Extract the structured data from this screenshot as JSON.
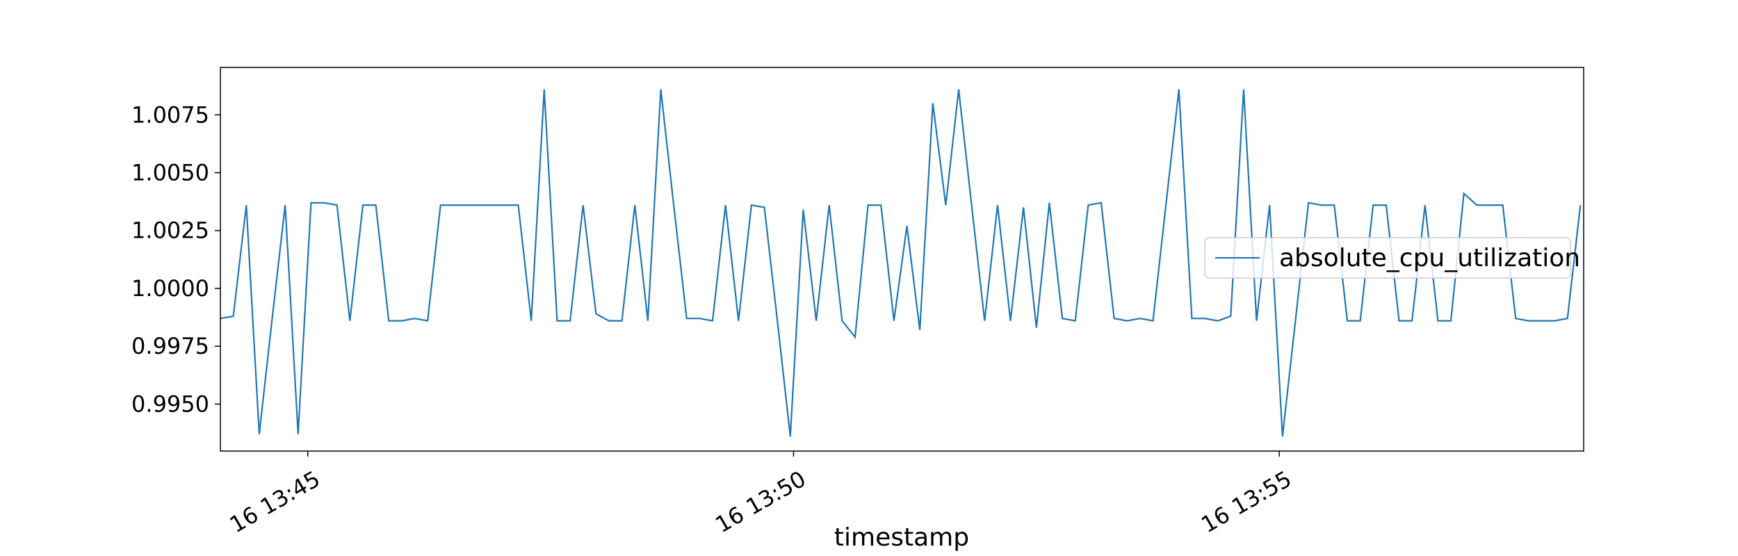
{
  "chart_data": {
    "type": "line",
    "title": "",
    "xlabel": "timestamp",
    "ylabel": "",
    "x_ticks": [
      {
        "minute": 45,
        "label": "16 13:45"
      },
      {
        "minute": 50,
        "label": "16 13:50"
      },
      {
        "minute": 55,
        "label": "16 13:55"
      }
    ],
    "y_ticks": [
      {
        "value": 0.995,
        "label": "0.9950"
      },
      {
        "value": 0.9975,
        "label": "0.9975"
      },
      {
        "value": 1.0,
        "label": "1.0000"
      },
      {
        "value": 1.0025,
        "label": "1.0025"
      },
      {
        "value": 1.005,
        "label": "1.0050"
      },
      {
        "value": 1.0075,
        "label": "1.0075"
      }
    ],
    "xlim": [
      "13:44:06",
      "13:58:08"
    ],
    "ylim": [
      0.99297,
      1.00955
    ],
    "grid": false,
    "legend_position": "center-right",
    "colors": {
      "series": "#1f77b4",
      "frame": "#000000"
    },
    "series": [
      {
        "name": "absolute_cpu_utilization",
        "x": [
          "13:44:06",
          "13:44:14",
          "13:44:22",
          "13:44:30",
          "13:44:38",
          "13:44:46",
          "13:44:54",
          "13:45:02",
          "13:45:10",
          "13:45:18",
          "13:45:26",
          "13:45:34",
          "13:45:42",
          "13:45:50",
          "13:45:58",
          "13:46:06",
          "13:46:14",
          "13:46:22",
          "13:46:30",
          "13:46:38",
          "13:46:46",
          "13:46:54",
          "13:47:02",
          "13:47:10",
          "13:47:18",
          "13:47:26",
          "13:47:34",
          "13:47:42",
          "13:47:50",
          "13:47:58",
          "13:48:06",
          "13:48:14",
          "13:48:22",
          "13:48:30",
          "13:48:38",
          "13:48:46",
          "13:48:54",
          "13:49:02",
          "13:49:10",
          "13:49:18",
          "13:49:26",
          "13:49:34",
          "13:49:42",
          "13:49:50",
          "13:49:58",
          "13:50:06",
          "13:50:14",
          "13:50:22",
          "13:50:30",
          "13:50:38",
          "13:50:46",
          "13:50:54",
          "13:51:02",
          "13:51:10",
          "13:51:18",
          "13:51:26",
          "13:51:34",
          "13:51:42",
          "13:51:50",
          "13:51:58",
          "13:52:06",
          "13:52:14",
          "13:52:22",
          "13:52:30",
          "13:52:38",
          "13:52:46",
          "13:52:54",
          "13:53:02",
          "13:53:10",
          "13:53:18",
          "13:53:26",
          "13:53:34",
          "13:53:42",
          "13:53:50",
          "13:53:58",
          "13:54:06",
          "13:54:14",
          "13:54:22",
          "13:54:30",
          "13:54:38",
          "13:54:46",
          "13:54:54",
          "13:55:02",
          "13:55:10",
          "13:55:18",
          "13:55:26",
          "13:55:34",
          "13:55:42",
          "13:55:50",
          "13:55:58",
          "13:56:06",
          "13:56:14",
          "13:56:22",
          "13:56:30",
          "13:56:38",
          "13:56:46",
          "13:56:54",
          "13:57:02",
          "13:57:10",
          "13:57:18",
          "13:57:26",
          "13:57:34",
          "13:57:42",
          "13:57:50",
          "13:57:58",
          "13:58:06"
        ],
        "values": [
          0.9987,
          0.9988,
          1.0036,
          0.9937,
          0.9987,
          1.0036,
          0.9937,
          1.0037,
          1.0037,
          1.0036,
          0.9986,
          1.0036,
          1.0036,
          0.9986,
          0.9986,
          0.9987,
          0.9986,
          1.0036,
          1.0036,
          1.0036,
          1.0036,
          1.0036,
          1.0036,
          1.0036,
          0.9986,
          1.0086,
          0.9986,
          0.9986,
          1.0036,
          0.9989,
          0.9986,
          0.9986,
          1.0036,
          0.9986,
          1.0086,
          1.0036,
          0.9987,
          0.9987,
          0.9986,
          1.0036,
          0.9986,
          1.0036,
          1.0035,
          0.9986,
          0.9936,
          1.0034,
          0.9986,
          1.0036,
          0.9986,
          0.9979,
          1.0036,
          1.0036,
          0.9986,
          1.0027,
          0.9982,
          1.008,
          1.0036,
          1.0086,
          1.0036,
          0.9986,
          1.0036,
          0.9986,
          1.0035,
          0.9983,
          1.0037,
          0.9987,
          0.9986,
          1.0036,
          1.0037,
          0.9987,
          0.9986,
          0.9987,
          0.9986,
          1.0036,
          1.0086,
          0.9987,
          0.9987,
          0.9986,
          0.9988,
          1.0086,
          0.9986,
          1.0036,
          0.9936,
          0.9986,
          1.0037,
          1.0036,
          1.0036,
          0.9986,
          0.9986,
          1.0036,
          1.0036,
          0.9986,
          0.9986,
          1.0036,
          0.9986,
          0.9986,
          1.0041,
          1.0036,
          1.0036,
          1.0036,
          0.9987,
          0.9986,
          0.9986,
          0.9986,
          0.9987,
          1.0036
        ]
      }
    ]
  }
}
